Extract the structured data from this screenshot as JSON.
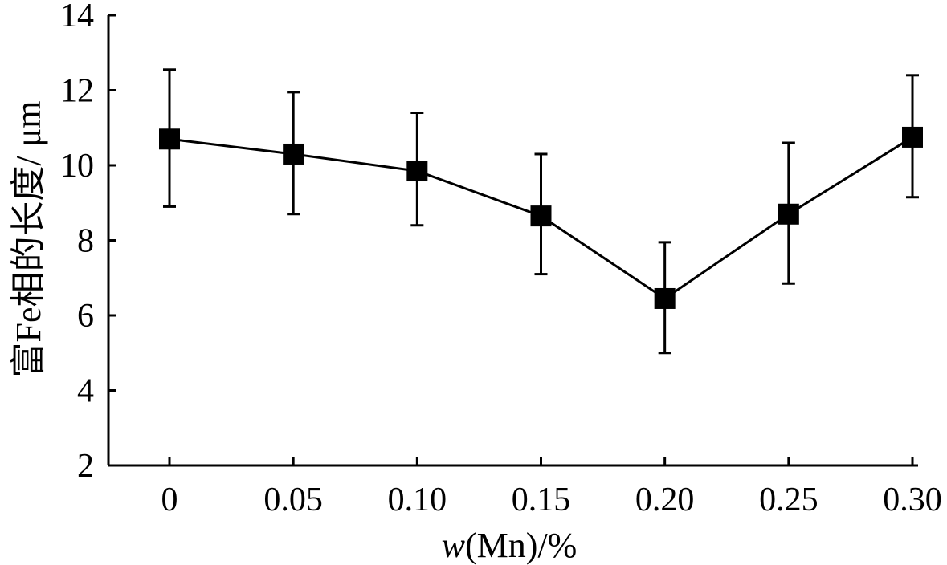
{
  "chart_data": {
    "type": "line",
    "xlabel_var": "w",
    "xlabel_rest": "(Mn)/%",
    "ylabel": "富Fe相的长度/ μm",
    "categories": [
      "0",
      "0.05",
      "0.10",
      "0.15",
      "0.20",
      "0.25",
      "0.30"
    ],
    "x": [
      0,
      0.05,
      0.1,
      0.15,
      0.2,
      0.25,
      0.3
    ],
    "series": [
      {
        "values": [
          10.7,
          10.3,
          9.85,
          8.65,
          6.45,
          8.7,
          10.75
        ],
        "error_upper": [
          12.55,
          11.95,
          11.4,
          10.3,
          7.95,
          10.6,
          12.4
        ],
        "error_lower": [
          8.9,
          8.7,
          8.4,
          7.1,
          5.0,
          6.85,
          9.15
        ],
        "marker": "square",
        "color": "#000000"
      }
    ],
    "ylim": [
      2,
      14
    ],
    "yticks": [
      2,
      4,
      6,
      8,
      10,
      12,
      14
    ],
    "grid": false,
    "legend": "none"
  }
}
